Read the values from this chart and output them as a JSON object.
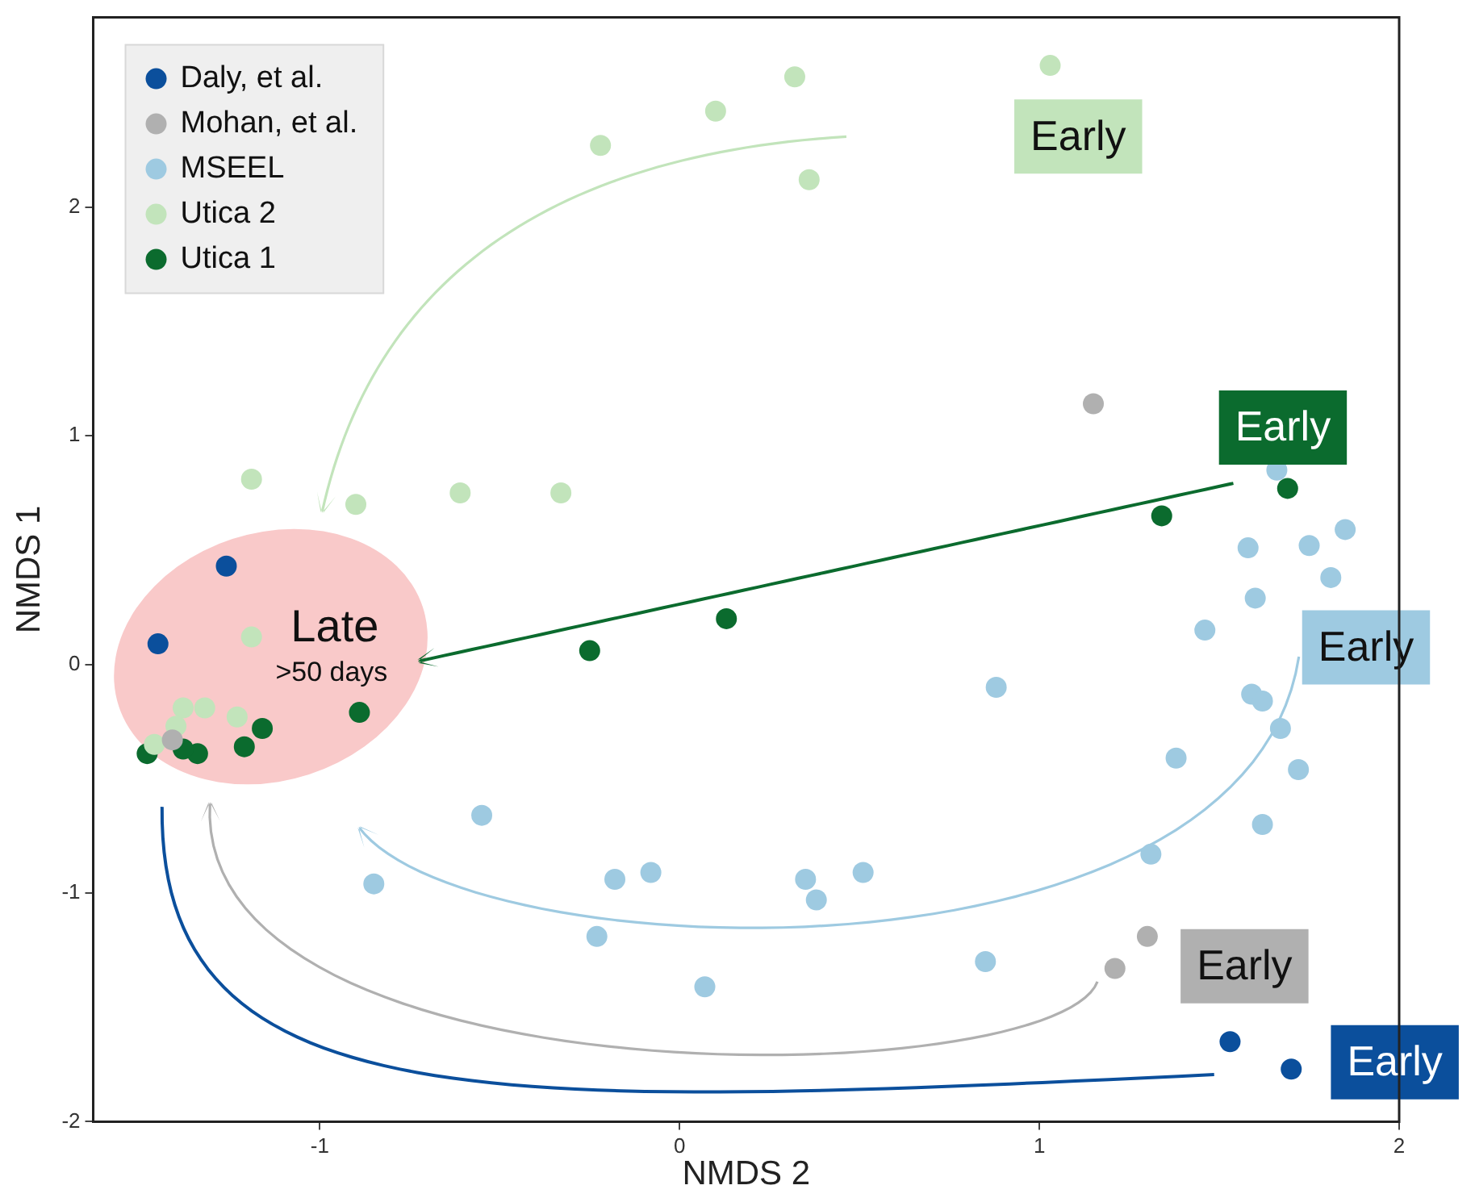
{
  "chart_data": {
    "type": "scatter",
    "xlabel": "NMDS 2",
    "ylabel": "NMDS 1",
    "xlim": [
      -1.63,
      2
    ],
    "ylim": [
      -2,
      2.83
    ],
    "xticks": [
      -1,
      0,
      1,
      2
    ],
    "yticks": [
      -2,
      -1,
      0,
      1,
      2
    ],
    "grid": false,
    "legend": "top left",
    "marker": "circle",
    "series": [
      {
        "name": "Daly, et al.",
        "color": "#0b4f9c",
        "x": [
          -1.26,
          -1.45,
          1.53,
          1.7
        ],
        "values": [
          0.43,
          0.09,
          -1.65,
          -1.77
        ]
      },
      {
        "name": "Mohan, et al.",
        "color": "#b0b0b0",
        "x": [
          1.15,
          -1.41,
          1.3,
          1.21
        ],
        "values": [
          1.14,
          -0.33,
          -1.19,
          -1.33
        ]
      },
      {
        "name": "MSEEL",
        "color": "#9ecae1",
        "x": [
          -0.55,
          -0.85,
          -0.18,
          -0.08,
          -0.23,
          0.07,
          1.85,
          1.58,
          1.75,
          1.81,
          1.6,
          1.46,
          0.88,
          1.59,
          1.62,
          1.67,
          1.38,
          1.72,
          1.62,
          1.31,
          0.35,
          0.38,
          0.51,
          0.85,
          1.66
        ],
        "values": [
          -0.66,
          -0.96,
          -0.94,
          -0.91,
          -1.19,
          -1.41,
          0.59,
          0.51,
          0.52,
          0.38,
          0.29,
          0.15,
          -0.1,
          -0.13,
          -0.16,
          -0.28,
          -0.41,
          -0.46,
          -0.7,
          -0.83,
          -0.94,
          -1.03,
          -0.91,
          -1.3,
          0.85
        ]
      },
      {
        "name": "Utica 2",
        "color": "#c2e4bb",
        "x": [
          -0.22,
          0.1,
          0.32,
          0.36,
          1.03,
          -1.19,
          -0.9,
          -0.61,
          -0.33,
          -1.19,
          -1.38,
          -1.32,
          -1.23,
          -1.4,
          -1.46
        ],
        "values": [
          2.27,
          2.42,
          2.57,
          2.12,
          2.62,
          0.81,
          0.7,
          0.75,
          0.75,
          0.12,
          -0.19,
          -0.19,
          -0.23,
          -0.27,
          -0.35
        ]
      },
      {
        "name": "Utica 1",
        "color": "#0b6b2e",
        "x": [
          1.34,
          1.69,
          -0.25,
          0.13,
          -0.89,
          -1.16,
          -1.21,
          -1.34,
          -1.38,
          -1.48
        ],
        "values": [
          0.65,
          0.77,
          0.06,
          0.2,
          -0.21,
          -0.28,
          -0.36,
          -0.39,
          -0.37,
          -0.39
        ]
      }
    ],
    "annotations": [
      "Early",
      "Early",
      "Early",
      "Early",
      "Early",
      "Late",
      ">50 days"
    ]
  }
}
